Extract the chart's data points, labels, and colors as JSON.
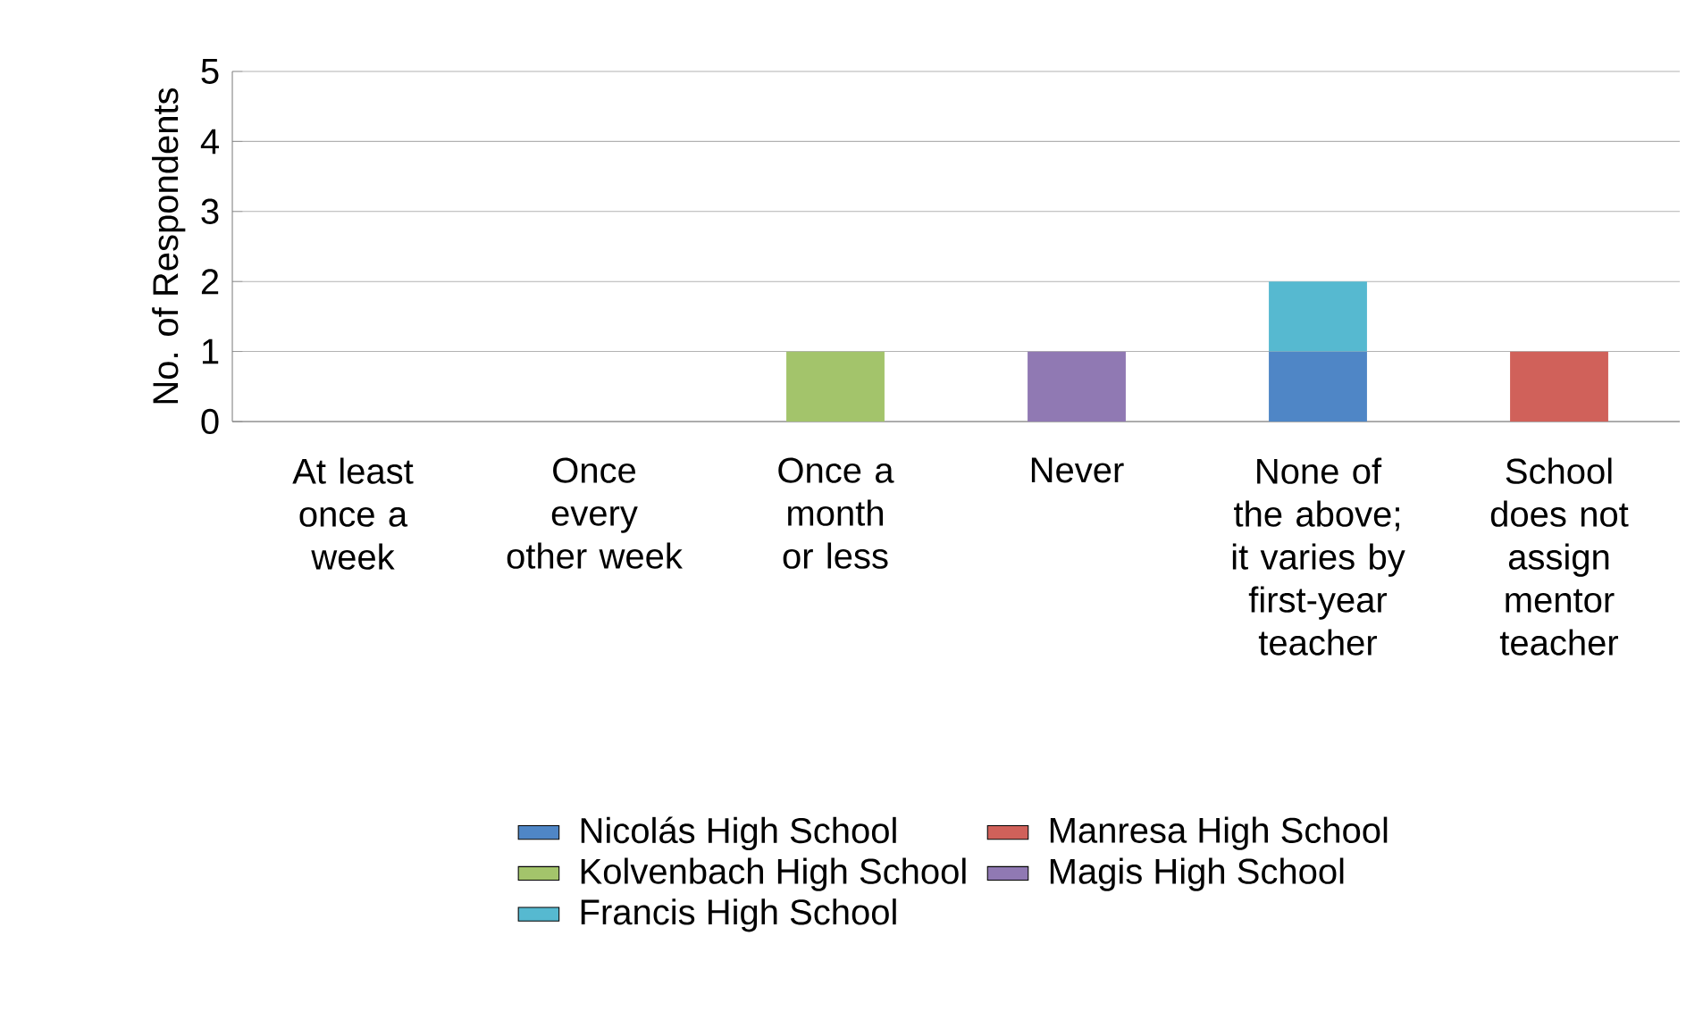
{
  "chart_data": {
    "type": "bar",
    "stacked": true,
    "ylabel": "No. of Respondents",
    "categories": [
      "At least once a week",
      "Once every other week",
      "Once a month or less",
      "Never",
      "None of the above; it varies by first-year teacher",
      "School does not assign mentor teacher"
    ],
    "series": [
      {
        "name": "Nicolás High School",
        "color": "#4f86c6",
        "values": [
          0,
          0,
          0,
          0,
          1,
          0
        ]
      },
      {
        "name": "Manresa High School",
        "color": "#d0615a",
        "values": [
          0,
          0,
          0,
          0,
          0,
          1
        ]
      },
      {
        "name": "Kolvenbach High School",
        "color": "#a3c46b",
        "values": [
          0,
          0,
          1,
          0,
          0,
          0
        ]
      },
      {
        "name": "Magis High School",
        "color": "#9079b3",
        "values": [
          0,
          0,
          0,
          1,
          0,
          0
        ]
      },
      {
        "name": "Francis High School",
        "color": "#56b9d0",
        "values": [
          0,
          0,
          0,
          0,
          1,
          0
        ]
      }
    ],
    "ylim": [
      0,
      5
    ],
    "yticks": [
      0,
      1,
      2,
      3,
      4,
      5
    ],
    "grid": "y",
    "legend": "bottom"
  }
}
